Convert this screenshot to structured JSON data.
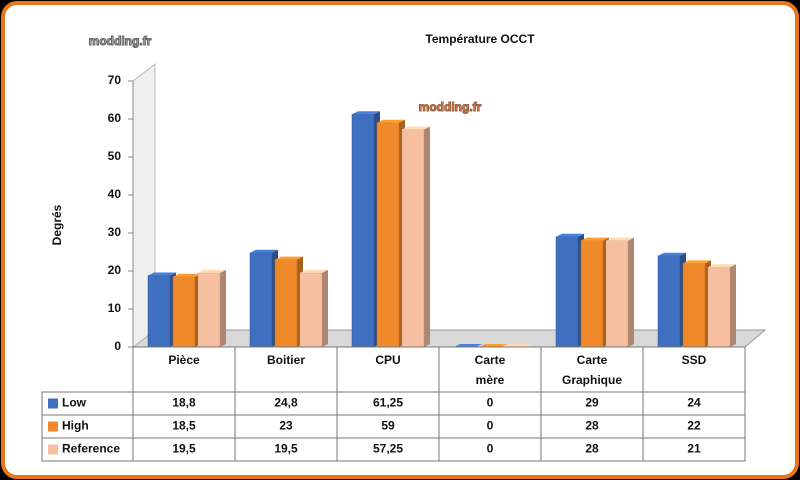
{
  "chart_data": {
    "type": "bar",
    "title": "Température OCCT",
    "watermark": "modding.fr",
    "y_label": "Degrés",
    "categories": [
      "Pièce",
      "Boitier",
      "CPU",
      "Carte mère",
      "Carte Graphique",
      "SSD"
    ],
    "series": [
      {
        "name": "Low",
        "color": "#3f6fbf",
        "values": [
          18.8,
          24.8,
          61.25,
          0,
          29,
          24
        ],
        "value_labels": [
          "18,8",
          "24,8",
          "61,25",
          "0",
          "29",
          "24"
        ]
      },
      {
        "name": "High",
        "color": "#f0892a",
        "values": [
          18.5,
          23,
          59,
          0,
          28,
          22
        ],
        "value_labels": [
          "18,5",
          "23",
          "59",
          "0",
          "28",
          "22"
        ]
      },
      {
        "name": "Reference",
        "color": "#f6bfa0",
        "values": [
          19.5,
          19.5,
          57.25,
          0,
          28,
          21
        ],
        "value_labels": [
          "19,5",
          "19,5",
          "57,25",
          "0",
          "28",
          "21"
        ]
      }
    ],
    "ylim": [
      0,
      70
    ],
    "yticks": [
      0,
      10,
      20,
      30,
      40,
      50,
      60,
      70
    ]
  }
}
